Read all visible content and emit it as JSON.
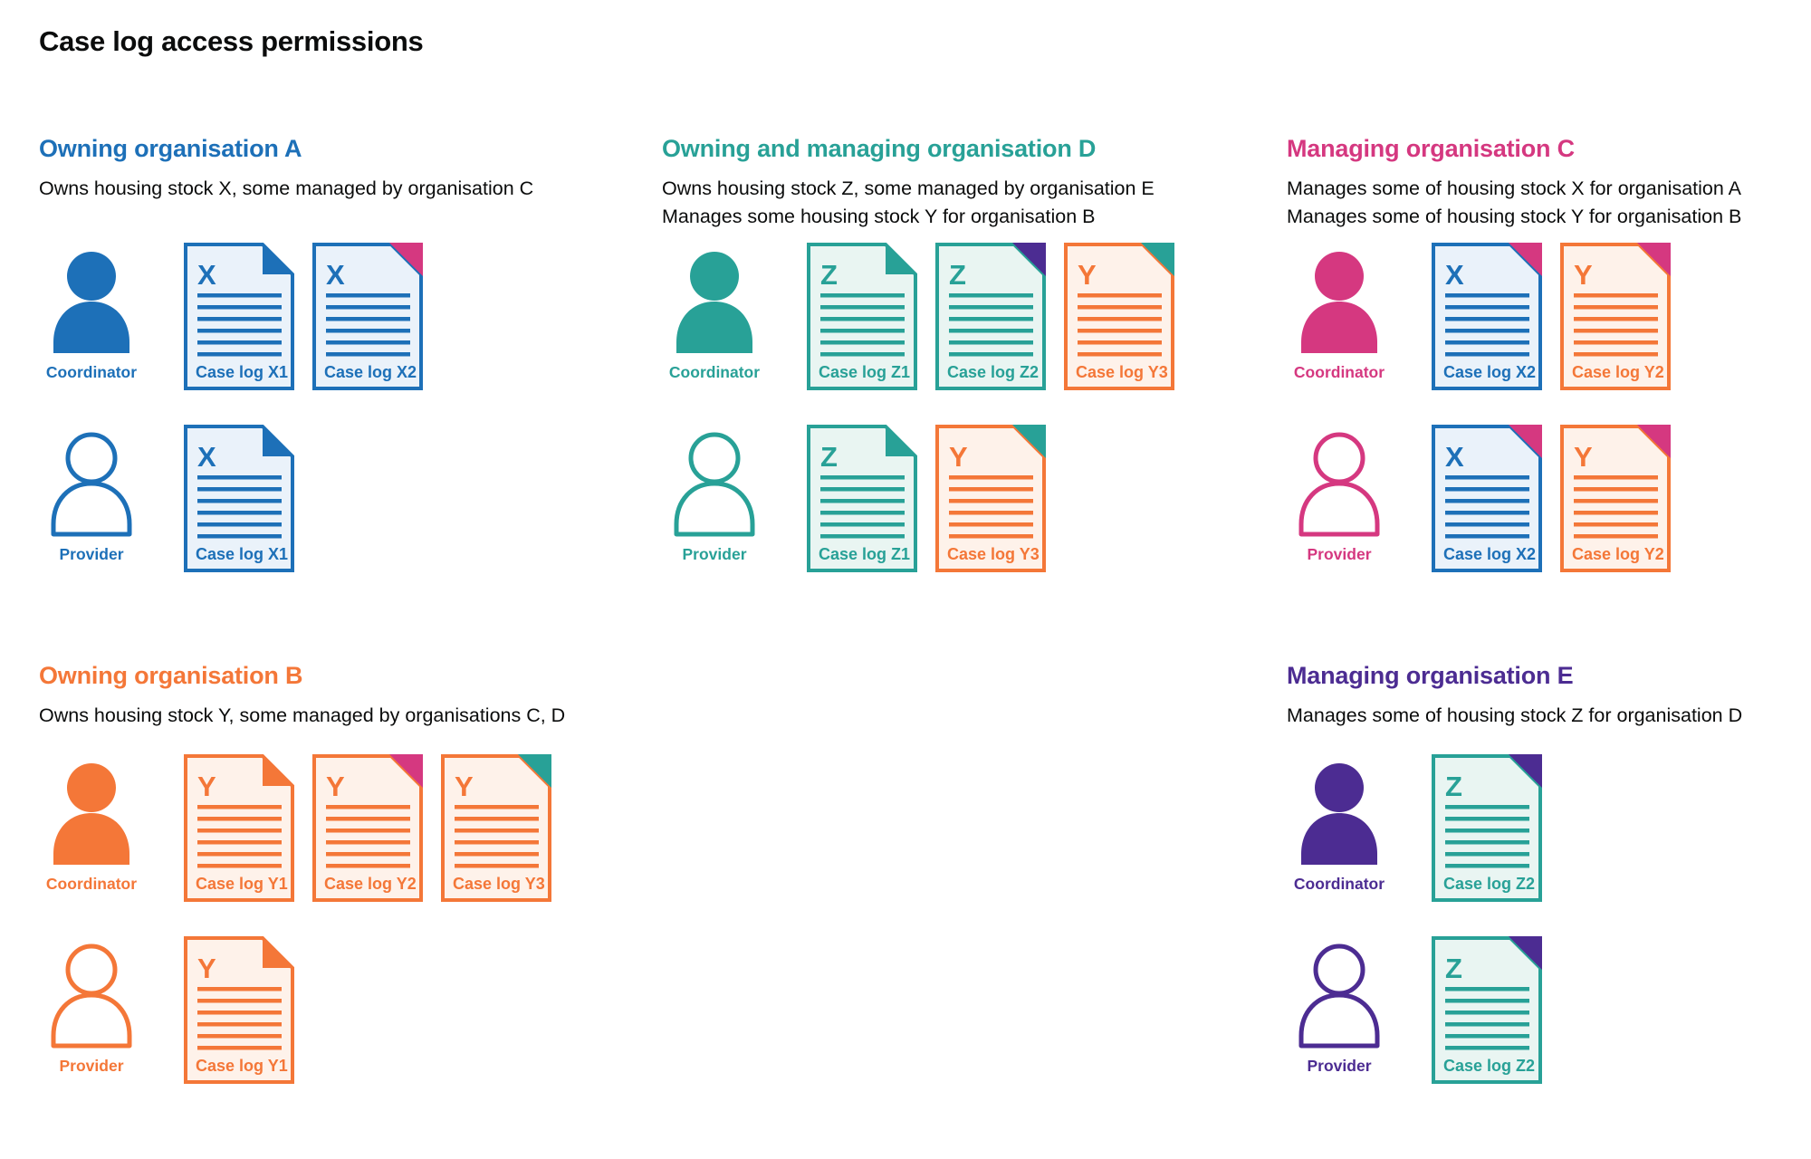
{
  "page": {
    "title": "Case log access permissions"
  },
  "colors": {
    "blue": "#1d70b8",
    "teal": "#28a197",
    "pink": "#d53880",
    "orange": "#f47738",
    "purple": "#4c2c92",
    "text": "#0b0c0c"
  },
  "doc_fills": {
    "blue": "#eaf2fa",
    "teal": "#e9f5f2",
    "orange": "#fef2ea"
  },
  "roles": {
    "coordinator": "Coordinator",
    "provider": "Provider"
  },
  "sections": [
    {
      "id": "owning-organisation-a",
      "heading": "Owning organisation A",
      "color": "blue",
      "description": [
        "Owns housing stock X, some managed by organisation C"
      ],
      "column": 1,
      "band": 1,
      "rows": [
        {
          "role": "coordinator",
          "docs": [
            {
              "letter": "X",
              "label": "Case log X1",
              "doc_color": "blue",
              "corner_color": "blue"
            },
            {
              "letter": "X",
              "label": "Case log X2",
              "doc_color": "blue",
              "corner_color": "pink"
            }
          ]
        },
        {
          "role": "provider",
          "docs": [
            {
              "letter": "X",
              "label": "Case log X1",
              "doc_color": "blue",
              "corner_color": "blue"
            }
          ]
        }
      ]
    },
    {
      "id": "owning-and-managing-organisation-d",
      "heading": "Owning and managing organisation D",
      "color": "teal",
      "description": [
        "Owns housing stock Z, some managed by organisation E",
        "Manages some housing stock Y for organisation B"
      ],
      "column": 2,
      "band": 1,
      "rows": [
        {
          "role": "coordinator",
          "docs": [
            {
              "letter": "Z",
              "label": "Case log Z1",
              "doc_color": "teal",
              "corner_color": "teal"
            },
            {
              "letter": "Z",
              "label": "Case log Z2",
              "doc_color": "teal",
              "corner_color": "purple"
            },
            {
              "letter": "Y",
              "label": "Case log Y3",
              "doc_color": "orange",
              "corner_color": "teal"
            }
          ]
        },
        {
          "role": "provider",
          "docs": [
            {
              "letter": "Z",
              "label": "Case log Z1",
              "doc_color": "teal",
              "corner_color": "teal"
            },
            {
              "letter": "Y",
              "label": "Case log Y3",
              "doc_color": "orange",
              "corner_color": "teal"
            }
          ]
        }
      ]
    },
    {
      "id": "managing-organisation-c",
      "heading": "Managing organisation C",
      "color": "pink",
      "description": [
        "Manages some of housing stock X for organisation A",
        "Manages some of housing stock Y for organisation B"
      ],
      "column": 3,
      "band": 1,
      "rows": [
        {
          "role": "coordinator",
          "docs": [
            {
              "letter": "X",
              "label": "Case log X2",
              "doc_color": "blue",
              "corner_color": "pink"
            },
            {
              "letter": "Y",
              "label": "Case log Y2",
              "doc_color": "orange",
              "corner_color": "pink"
            }
          ]
        },
        {
          "role": "provider",
          "docs": [
            {
              "letter": "X",
              "label": "Case log X2",
              "doc_color": "blue",
              "corner_color": "pink"
            },
            {
              "letter": "Y",
              "label": "Case log Y2",
              "doc_color": "orange",
              "corner_color": "pink"
            }
          ]
        }
      ]
    },
    {
      "id": "owning-organisation-b",
      "heading": "Owning organisation B",
      "color": "orange",
      "description": [
        "Owns housing stock Y, some managed by organisations C, D"
      ],
      "column": 1,
      "band": 2,
      "rows": [
        {
          "role": "coordinator",
          "docs": [
            {
              "letter": "Y",
              "label": "Case log Y1",
              "doc_color": "orange",
              "corner_color": "orange"
            },
            {
              "letter": "Y",
              "label": "Case log Y2",
              "doc_color": "orange",
              "corner_color": "pink"
            },
            {
              "letter": "Y",
              "label": "Case log Y3",
              "doc_color": "orange",
              "corner_color": "teal"
            }
          ]
        },
        {
          "role": "provider",
          "docs": [
            {
              "letter": "Y",
              "label": "Case log Y1",
              "doc_color": "orange",
              "corner_color": "orange"
            }
          ]
        }
      ]
    },
    {
      "id": "managing-organisation-e",
      "heading": "Managing organisation E",
      "color": "purple",
      "description": [
        "Manages some of housing stock Z for organisation D"
      ],
      "column": 3,
      "band": 2,
      "rows": [
        {
          "role": "coordinator",
          "docs": [
            {
              "letter": "Z",
              "label": "Case log Z2",
              "doc_color": "teal",
              "corner_color": "purple"
            }
          ]
        },
        {
          "role": "provider",
          "docs": [
            {
              "letter": "Z",
              "label": "Case log Z2",
              "doc_color": "teal",
              "corner_color": "purple"
            }
          ]
        }
      ]
    }
  ]
}
